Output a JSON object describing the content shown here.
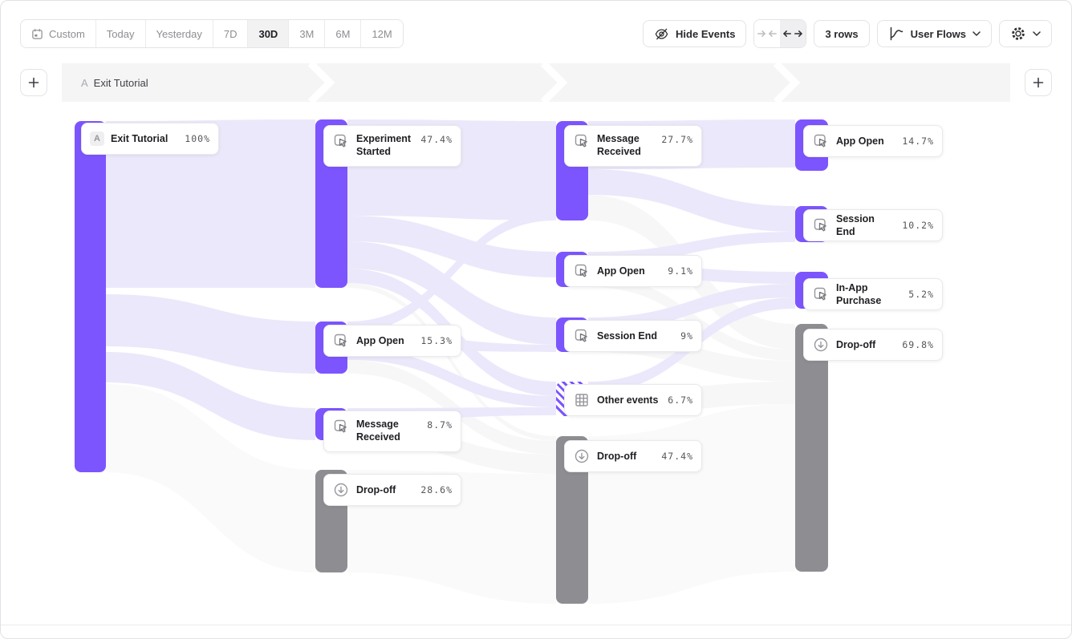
{
  "toolbar": {
    "date_ranges": [
      {
        "label": "Custom",
        "icon": "calendar",
        "active": false
      },
      {
        "label": "Today",
        "active": false
      },
      {
        "label": "Yesterday",
        "active": false
      },
      {
        "label": "7D",
        "active": false
      },
      {
        "label": "30D",
        "active": true
      },
      {
        "label": "3M",
        "active": false
      },
      {
        "label": "6M",
        "active": false
      },
      {
        "label": "12M",
        "active": false
      }
    ],
    "hide_events_label": "Hide Events",
    "rows_label": "3 rows",
    "view_label": "User Flows"
  },
  "steps_header": {
    "letter": "A",
    "name": "Exit Tutorial"
  },
  "colors": {
    "accent": "#7C55FF",
    "dropoff": "#8E8E92",
    "ribbon": "#ECE8FB",
    "ribbon_dropoff": "#F7F7F8",
    "band_background": "#F5F5F6"
  },
  "chart_data": {
    "type": "sankey",
    "title": "User Flows starting from Exit Tutorial",
    "start_event": "Exit Tutorial",
    "columns": [
      {
        "step": 1,
        "nodes": [
          {
            "id": "exit",
            "label": "Exit Tutorial",
            "pct": "100%",
            "kind": "start",
            "badge": "A"
          }
        ]
      },
      {
        "step": 2,
        "nodes": [
          {
            "id": "es2",
            "label": "Experiment Started",
            "pct": "47.4%",
            "kind": "event"
          },
          {
            "id": "ao2",
            "label": "App Open",
            "pct": "15.3%",
            "kind": "event"
          },
          {
            "id": "mr2",
            "label": "Message Received",
            "pct": "8.7%",
            "kind": "event"
          },
          {
            "id": "do2",
            "label": "Drop-off",
            "pct": "28.6%",
            "kind": "dropoff"
          }
        ]
      },
      {
        "step": 3,
        "nodes": [
          {
            "id": "mr3",
            "label": "Message Received",
            "pct": "27.7%",
            "kind": "event"
          },
          {
            "id": "ao3",
            "label": "App Open",
            "pct": "9.1%",
            "kind": "event"
          },
          {
            "id": "se3",
            "label": "Session End",
            "pct": "9%",
            "kind": "event"
          },
          {
            "id": "oe3",
            "label": "Other events",
            "pct": "6.7%",
            "kind": "other"
          },
          {
            "id": "do3",
            "label": "Drop-off",
            "pct": "47.4%",
            "kind": "dropoff"
          }
        ]
      },
      {
        "step": 4,
        "nodes": [
          {
            "id": "ao4",
            "label": "App Open",
            "pct": "14.7%",
            "kind": "event"
          },
          {
            "id": "se4",
            "label": "Session End",
            "pct": "10.2%",
            "kind": "event"
          },
          {
            "id": "iap4",
            "label": "In-App Purchase",
            "pct": "5.2%",
            "kind": "event"
          },
          {
            "id": "do4",
            "label": "Drop-off",
            "pct": "69.8%",
            "kind": "dropoff"
          }
        ]
      }
    ]
  }
}
